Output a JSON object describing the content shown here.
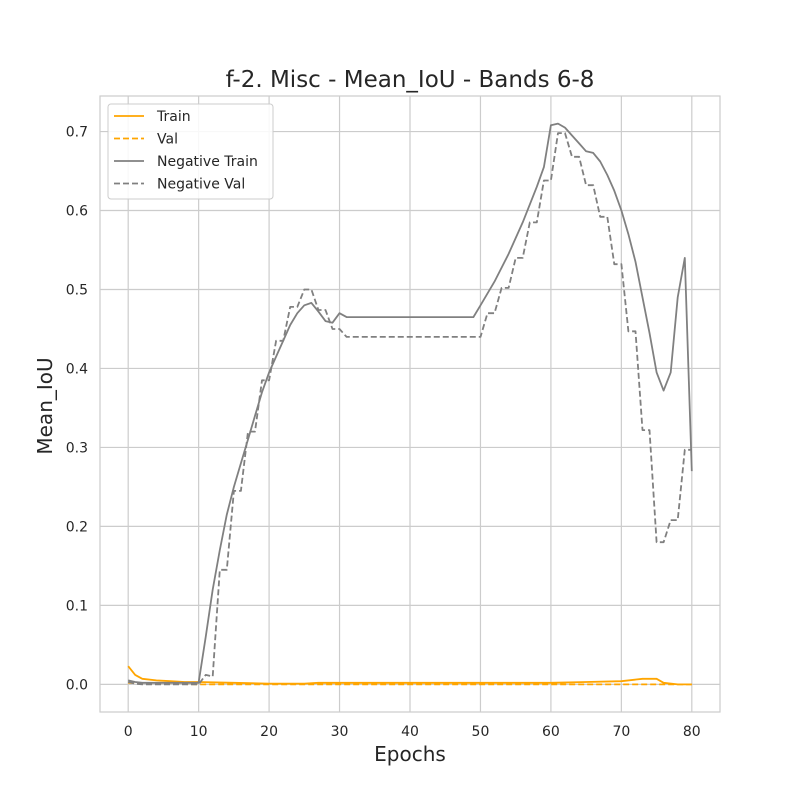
{
  "chart_data": {
    "type": "line",
    "title": "f-2. Misc - Mean_IoU - Bands 6-8",
    "xlabel": "Epochs",
    "ylabel": "Mean_IoU",
    "xlim": [
      -4,
      84
    ],
    "ylim": [
      -0.035,
      0.745
    ],
    "xticks": [
      0,
      10,
      20,
      30,
      40,
      50,
      60,
      70,
      80
    ],
    "yticks": [
      0.0,
      0.1,
      0.2,
      0.3,
      0.4,
      0.5,
      0.6,
      0.7
    ],
    "ytick_labels": [
      "0.0",
      "0.1",
      "0.2",
      "0.3",
      "0.4",
      "0.5",
      "0.6",
      "0.7"
    ],
    "grid": true,
    "legend_position": "top-left",
    "series": [
      {
        "name": "Train",
        "color": "#ffa500",
        "style": "solid",
        "x": [
          0,
          1,
          2,
          4,
          6,
          8,
          10,
          15,
          20,
          25,
          27,
          30,
          35,
          40,
          45,
          50,
          55,
          60,
          65,
          70,
          73,
          75,
          76,
          78,
          80
        ],
        "y": [
          0.023,
          0.012,
          0.007,
          0.005,
          0.004,
          0.003,
          0.003,
          0.002,
          0.001,
          0.001,
          0.002,
          0.002,
          0.002,
          0.002,
          0.002,
          0.002,
          0.002,
          0.002,
          0.003,
          0.004,
          0.007,
          0.007,
          0.002,
          0.0,
          0.0
        ]
      },
      {
        "name": "Val",
        "color": "#ffa500",
        "style": "dashed",
        "x": [
          0,
          5,
          10,
          20,
          30,
          40,
          50,
          60,
          70,
          75,
          80
        ],
        "y": [
          0.002,
          0.001,
          0.0,
          0.0,
          0.0,
          0.0,
          0.0,
          0.0,
          0.0,
          0.0,
          0.0
        ]
      },
      {
        "name": "Negative Train",
        "color": "#808080",
        "style": "solid",
        "x": [
          0,
          1,
          2,
          4,
          6,
          8,
          10,
          11,
          12,
          13,
          14,
          15,
          16,
          17,
          18,
          19,
          20,
          21,
          22,
          23,
          24,
          25,
          26,
          27,
          28,
          29,
          30,
          31,
          35,
          40,
          45,
          49,
          50,
          52,
          54,
          56,
          58,
          59,
          60,
          61,
          62,
          63,
          64,
          65,
          66,
          67,
          68,
          69,
          70,
          71,
          72,
          73,
          74,
          75,
          76,
          77,
          78,
          79,
          80
        ],
        "y": [
          0.005,
          0.003,
          0.002,
          0.002,
          0.002,
          0.002,
          0.002,
          0.06,
          0.12,
          0.17,
          0.215,
          0.25,
          0.28,
          0.31,
          0.34,
          0.37,
          0.395,
          0.415,
          0.435,
          0.455,
          0.47,
          0.48,
          0.483,
          0.472,
          0.46,
          0.458,
          0.47,
          0.465,
          0.465,
          0.465,
          0.465,
          0.465,
          0.48,
          0.51,
          0.545,
          0.585,
          0.63,
          0.655,
          0.708,
          0.71,
          0.705,
          0.695,
          0.685,
          0.675,
          0.673,
          0.662,
          0.645,
          0.625,
          0.6,
          0.57,
          0.535,
          0.49,
          0.445,
          0.395,
          0.372,
          0.395,
          0.49,
          0.54,
          0.27
        ]
      },
      {
        "name": "Negative Val",
        "color": "#808080",
        "style": "dashed",
        "x": [
          0,
          1,
          2,
          4,
          6,
          8,
          10,
          11,
          12,
          13,
          14,
          15,
          16,
          17,
          18,
          19,
          20,
          21,
          22,
          23,
          24,
          25,
          26,
          27,
          28,
          29,
          30,
          31,
          35,
          40,
          45,
          49,
          50,
          51,
          52,
          53,
          54,
          55,
          56,
          57,
          58,
          59,
          60,
          61,
          62,
          63,
          64,
          65,
          66,
          67,
          68,
          69,
          70,
          71,
          72,
          73,
          74,
          75,
          76,
          77,
          78,
          79,
          80
        ],
        "y": [
          0.003,
          0.001,
          0.0,
          0.0,
          0.0,
          0.0,
          0.0,
          0.012,
          0.01,
          0.145,
          0.145,
          0.245,
          0.245,
          0.32,
          0.32,
          0.385,
          0.385,
          0.435,
          0.435,
          0.478,
          0.478,
          0.5,
          0.5,
          0.474,
          0.474,
          0.45,
          0.45,
          0.44,
          0.44,
          0.44,
          0.44,
          0.44,
          0.44,
          0.47,
          0.47,
          0.502,
          0.502,
          0.54,
          0.54,
          0.585,
          0.585,
          0.638,
          0.638,
          0.698,
          0.698,
          0.668,
          0.668,
          0.632,
          0.632,
          0.592,
          0.592,
          0.532,
          0.532,
          0.447,
          0.447,
          0.322,
          0.322,
          0.18,
          0.18,
          0.208,
          0.208,
          0.297,
          0.297
        ]
      }
    ]
  }
}
